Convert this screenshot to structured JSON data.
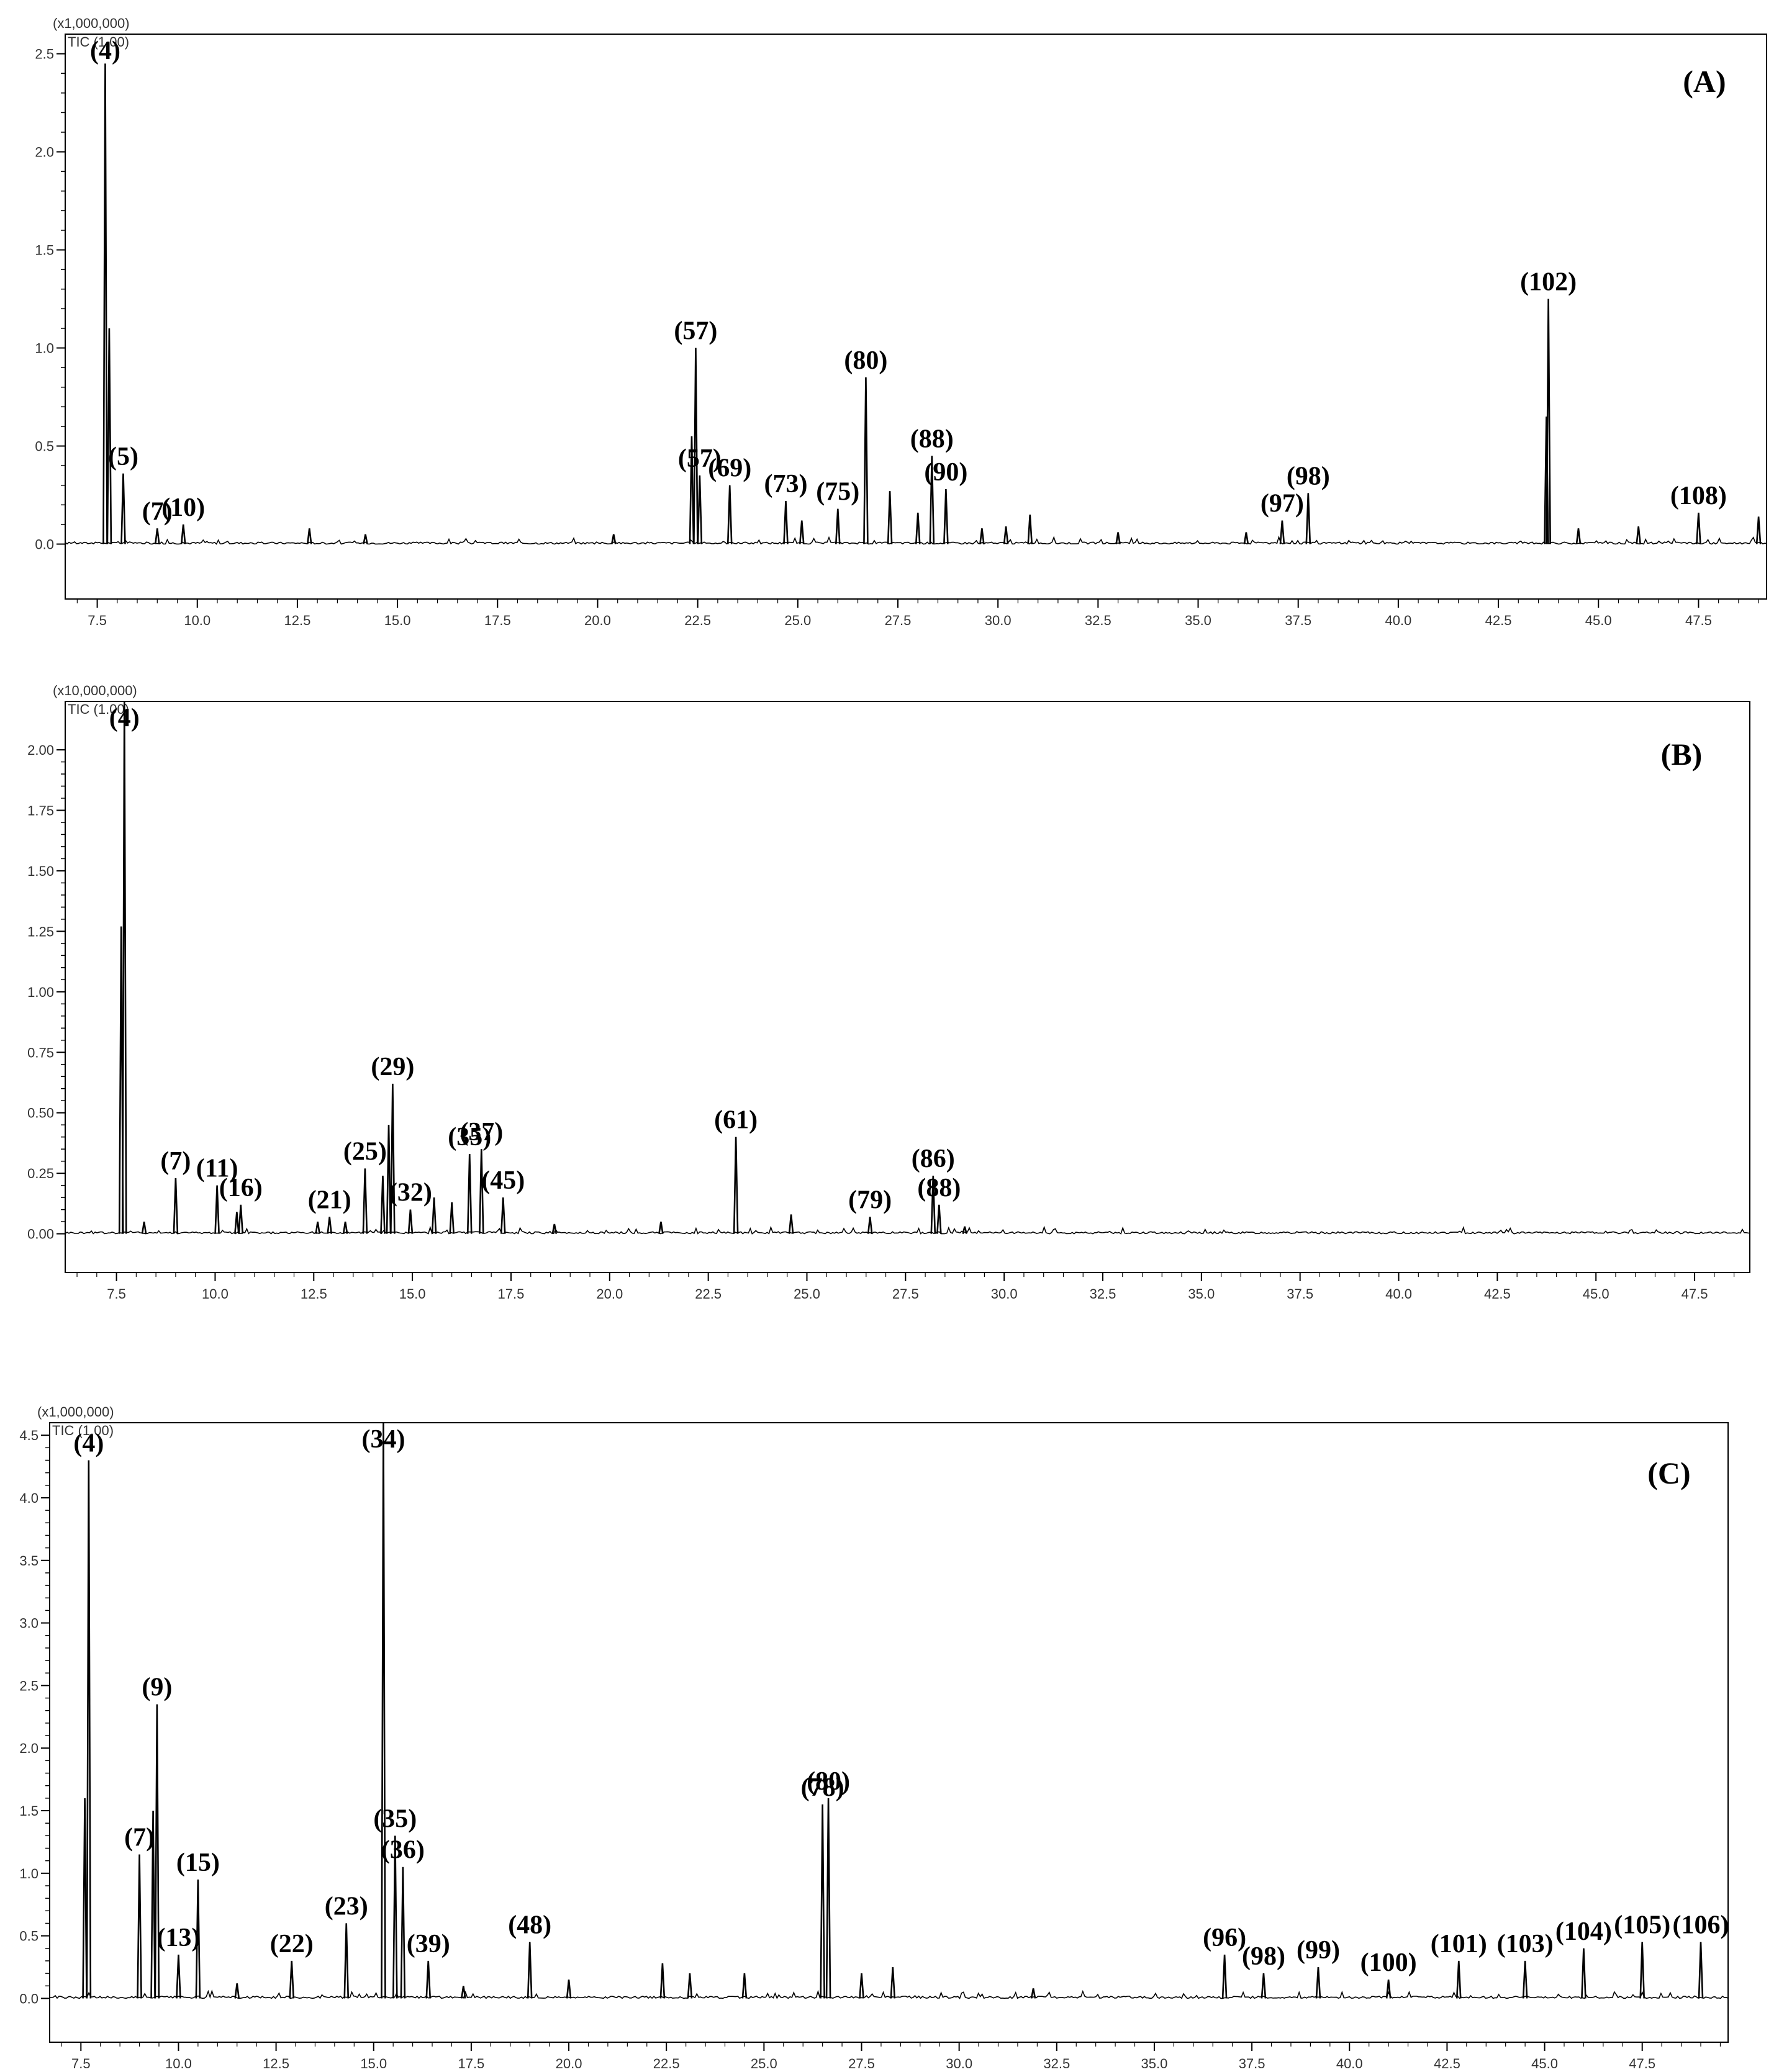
{
  "chart_data": [
    {
      "type": "line",
      "panel_label": "(A)",
      "y_multiplier": "(x1,000,000)",
      "trace_label": "TIC (1.00)",
      "xlim": [
        6.7,
        49.2
      ],
      "ylim": [
        -0.28,
        2.6
      ],
      "x_ticks": [
        "7.5",
        "10.0",
        "12.5",
        "15.0",
        "17.5",
        "20.0",
        "22.5",
        "25.0",
        "27.5",
        "30.0",
        "32.5",
        "35.0",
        "37.5",
        "40.0",
        "42.5",
        "45.0",
        "47.5"
      ],
      "y_ticks": [
        "0.0",
        "0.5",
        "1.0",
        "1.5",
        "2.0",
        "2.5"
      ],
      "peaks": [
        {
          "rt": 7.7,
          "height": 2.45,
          "label": "(4)"
        },
        {
          "rt": 7.8,
          "height": 1.1,
          "label": ""
        },
        {
          "rt": 8.15,
          "height": 0.36,
          "label": "(5)"
        },
        {
          "rt": 9.0,
          "height": 0.08,
          "label": "(7)"
        },
        {
          "rt": 9.65,
          "height": 0.1,
          "label": "(10)"
        },
        {
          "rt": 12.8,
          "height": 0.08,
          "label": ""
        },
        {
          "rt": 14.2,
          "height": 0.05,
          "label": ""
        },
        {
          "rt": 20.4,
          "height": 0.05,
          "label": ""
        },
        {
          "rt": 22.35,
          "height": 0.55,
          "label": ""
        },
        {
          "rt": 22.45,
          "height": 1.0,
          "label": "(57)"
        },
        {
          "rt": 22.55,
          "height": 0.35,
          "label": "(57)"
        },
        {
          "rt": 23.3,
          "height": 0.3,
          "label": "(69)"
        },
        {
          "rt": 24.7,
          "height": 0.22,
          "label": "(73)"
        },
        {
          "rt": 25.1,
          "height": 0.12,
          "label": ""
        },
        {
          "rt": 26.0,
          "height": 0.18,
          "label": "(75)"
        },
        {
          "rt": 26.7,
          "height": 0.85,
          "label": "(80)"
        },
        {
          "rt": 27.3,
          "height": 0.27,
          "label": ""
        },
        {
          "rt": 28.0,
          "height": 0.16,
          "label": ""
        },
        {
          "rt": 28.35,
          "height": 0.45,
          "label": "(88)"
        },
        {
          "rt": 28.7,
          "height": 0.28,
          "label": "(90)"
        },
        {
          "rt": 29.6,
          "height": 0.08,
          "label": ""
        },
        {
          "rt": 30.2,
          "height": 0.09,
          "label": ""
        },
        {
          "rt": 30.8,
          "height": 0.15,
          "label": ""
        },
        {
          "rt": 33.0,
          "height": 0.06,
          "label": ""
        },
        {
          "rt": 36.2,
          "height": 0.06,
          "label": ""
        },
        {
          "rt": 37.1,
          "height": 0.12,
          "label": "(97)"
        },
        {
          "rt": 37.75,
          "height": 0.26,
          "label": "(98)"
        },
        {
          "rt": 43.75,
          "height": 1.25,
          "label": "(102)"
        },
        {
          "rt": 43.7,
          "height": 0.65,
          "label": ""
        },
        {
          "rt": 44.5,
          "height": 0.08,
          "label": ""
        },
        {
          "rt": 46.0,
          "height": 0.09,
          "label": ""
        },
        {
          "rt": 47.5,
          "height": 0.16,
          "label": "(108)"
        },
        {
          "rt": 49.0,
          "height": 0.14,
          "label": ""
        }
      ]
    },
    {
      "type": "line",
      "panel_label": "(B)",
      "y_multiplier": "(x10,000,000)",
      "trace_label": "TIC (1.00)",
      "xlim": [
        6.2,
        48.9
      ],
      "ylim": [
        -0.16,
        2.2
      ],
      "x_ticks": [
        "7.5",
        "10.0",
        "12.5",
        "15.0",
        "17.5",
        "20.0",
        "22.5",
        "25.0",
        "27.5",
        "30.0",
        "32.5",
        "35.0",
        "37.5",
        "40.0",
        "42.5",
        "45.0",
        "47.5"
      ],
      "y_ticks": [
        "0.00",
        "0.25",
        "0.50",
        "0.75",
        "1.00",
        "1.25",
        "1.50",
        "1.75",
        "2.00"
      ],
      "peaks": [
        {
          "rt": 7.7,
          "height": 2.2,
          "label": "(4)"
        },
        {
          "rt": 7.62,
          "height": 1.27,
          "label": ""
        },
        {
          "rt": 8.2,
          "height": 0.05,
          "label": ""
        },
        {
          "rt": 9.0,
          "height": 0.23,
          "label": "(7)"
        },
        {
          "rt": 10.05,
          "height": 0.2,
          "label": "(11)"
        },
        {
          "rt": 10.55,
          "height": 0.09,
          "label": ""
        },
        {
          "rt": 10.65,
          "height": 0.12,
          "label": "(16)"
        },
        {
          "rt": 12.6,
          "height": 0.05,
          "label": ""
        },
        {
          "rt": 12.9,
          "height": 0.07,
          "label": "(21)"
        },
        {
          "rt": 13.3,
          "height": 0.05,
          "label": ""
        },
        {
          "rt": 13.8,
          "height": 0.27,
          "label": "(25)"
        },
        {
          "rt": 14.25,
          "height": 0.24,
          "label": ""
        },
        {
          "rt": 14.4,
          "height": 0.45,
          "label": ""
        },
        {
          "rt": 14.5,
          "height": 0.62,
          "label": "(29)"
        },
        {
          "rt": 14.95,
          "height": 0.1,
          "label": "(32)"
        },
        {
          "rt": 15.55,
          "height": 0.15,
          "label": ""
        },
        {
          "rt": 16.0,
          "height": 0.13,
          "label": ""
        },
        {
          "rt": 16.45,
          "height": 0.33,
          "label": "(35)"
        },
        {
          "rt": 16.75,
          "height": 0.35,
          "label": "(37)"
        },
        {
          "rt": 17.3,
          "height": 0.15,
          "label": "(45)"
        },
        {
          "rt": 18.6,
          "height": 0.04,
          "label": ""
        },
        {
          "rt": 21.3,
          "height": 0.05,
          "label": ""
        },
        {
          "rt": 23.2,
          "height": 0.4,
          "label": "(61)"
        },
        {
          "rt": 24.6,
          "height": 0.08,
          "label": ""
        },
        {
          "rt": 26.6,
          "height": 0.07,
          "label": "(79)"
        },
        {
          "rt": 28.2,
          "height": 0.24,
          "label": "(86)"
        },
        {
          "rt": 28.35,
          "height": 0.12,
          "label": "(88)"
        },
        {
          "rt": 29.0,
          "height": 0.03,
          "label": ""
        }
      ]
    },
    {
      "type": "line",
      "panel_label": "(C)",
      "y_multiplier": "(x1,000,000)",
      "trace_label": "TIC (1.00)",
      "xlim": [
        6.7,
        49.7
      ],
      "ylim": [
        -0.35,
        4.6
      ],
      "x_ticks": [
        "7.5",
        "10.0",
        "12.5",
        "15.0",
        "17.5",
        "20.0",
        "22.5",
        "25.0",
        "27.5",
        "30.0",
        "32.5",
        "35.0",
        "37.5",
        "40.0",
        "42.5",
        "45.0",
        "47.5"
      ],
      "y_ticks": [
        "0.0",
        "0.5",
        "1.0",
        "1.5",
        "2.0",
        "2.5",
        "3.0",
        "3.5",
        "4.0",
        "4.5"
      ],
      "peaks": [
        {
          "rt": 7.6,
          "height": 1.6,
          "label": ""
        },
        {
          "rt": 7.7,
          "height": 4.3,
          "label": "(4)"
        },
        {
          "rt": 9.0,
          "height": 1.15,
          "label": "(7)"
        },
        {
          "rt": 9.35,
          "height": 1.5,
          "label": ""
        },
        {
          "rt": 9.45,
          "height": 2.35,
          "label": "(9)"
        },
        {
          "rt": 10.0,
          "height": 0.35,
          "label": "(13)"
        },
        {
          "rt": 10.5,
          "height": 0.95,
          "label": "(15)"
        },
        {
          "rt": 11.5,
          "height": 0.12,
          "label": ""
        },
        {
          "rt": 12.9,
          "height": 0.3,
          "label": "(22)"
        },
        {
          "rt": 14.3,
          "height": 0.6,
          "label": "(23)"
        },
        {
          "rt": 15.25,
          "height": 4.6,
          "label": "(34)"
        },
        {
          "rt": 15.55,
          "height": 1.3,
          "label": "(35)"
        },
        {
          "rt": 15.75,
          "height": 1.05,
          "label": "(36)"
        },
        {
          "rt": 16.4,
          "height": 0.3,
          "label": "(39)"
        },
        {
          "rt": 17.3,
          "height": 0.1,
          "label": ""
        },
        {
          "rt": 19.0,
          "height": 0.45,
          "label": "(48)"
        },
        {
          "rt": 20.0,
          "height": 0.15,
          "label": ""
        },
        {
          "rt": 22.4,
          "height": 0.28,
          "label": ""
        },
        {
          "rt": 23.1,
          "height": 0.2,
          "label": ""
        },
        {
          "rt": 24.5,
          "height": 0.2,
          "label": ""
        },
        {
          "rt": 26.5,
          "height": 1.55,
          "label": "(78)"
        },
        {
          "rt": 26.65,
          "height": 1.6,
          "label": "(80)"
        },
        {
          "rt": 27.5,
          "height": 0.2,
          "label": ""
        },
        {
          "rt": 28.3,
          "height": 0.25,
          "label": ""
        },
        {
          "rt": 31.9,
          "height": 0.08,
          "label": ""
        },
        {
          "rt": 36.8,
          "height": 0.35,
          "label": "(96)"
        },
        {
          "rt": 37.8,
          "height": 0.2,
          "label": "(98)"
        },
        {
          "rt": 39.2,
          "height": 0.25,
          "label": "(99)"
        },
        {
          "rt": 41.0,
          "height": 0.15,
          "label": "(100)"
        },
        {
          "rt": 42.8,
          "height": 0.3,
          "label": "(101)"
        },
        {
          "rt": 44.5,
          "height": 0.3,
          "label": "(103)"
        },
        {
          "rt": 46.0,
          "height": 0.4,
          "label": "(104)"
        },
        {
          "rt": 47.5,
          "height": 0.45,
          "label": "(105)"
        },
        {
          "rt": 49.0,
          "height": 0.45,
          "label": "(106)"
        }
      ]
    }
  ]
}
